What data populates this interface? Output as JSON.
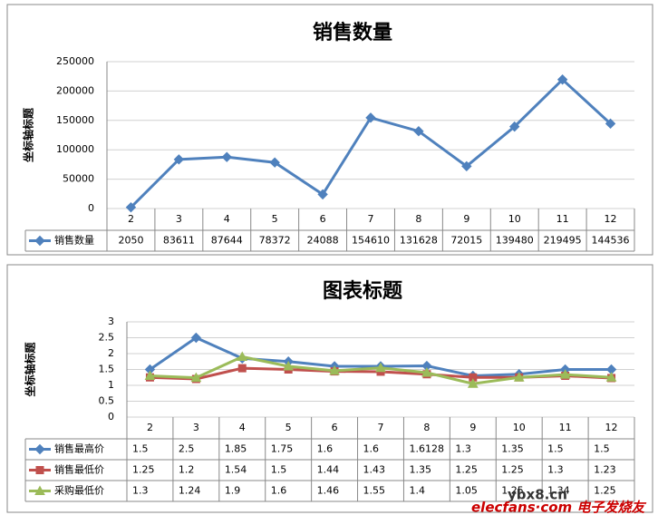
{
  "chart_data": [
    {
      "type": "line",
      "title": "销售数量",
      "y_label": "坐标轴标题",
      "categories": [
        "2",
        "3",
        "4",
        "5",
        "6",
        "7",
        "8",
        "9",
        "10",
        "11",
        "12"
      ],
      "series": [
        {
          "name": "销售数量",
          "color": "#4f81bd",
          "marker": "diamond",
          "values": [
            2050,
            83611,
            87644,
            78372,
            24088,
            154610,
            131628,
            72015,
            139480,
            219495,
            144536
          ]
        }
      ],
      "ylim": [
        0,
        250000
      ],
      "yticks": [
        0,
        50000,
        100000,
        150000,
        200000,
        250000
      ],
      "grid": true,
      "data_table": true
    },
    {
      "type": "line",
      "title": "图表标题",
      "y_label": "坐标轴标题",
      "categories": [
        "2",
        "3",
        "4",
        "5",
        "6",
        "7",
        "8",
        "9",
        "10",
        "11",
        "12"
      ],
      "series": [
        {
          "name": "销售最高价",
          "color": "#4f81bd",
          "marker": "diamond",
          "values": [
            1.5,
            2.5,
            1.85,
            1.75,
            1.6,
            1.6,
            1.6128,
            1.3,
            1.35,
            1.5,
            1.5
          ]
        },
        {
          "name": "销售最低价",
          "color": "#c0504d",
          "marker": "square",
          "values": [
            1.25,
            1.2,
            1.54,
            1.5,
            1.44,
            1.43,
            1.35,
            1.25,
            1.25,
            1.3,
            1.23
          ]
        },
        {
          "name": "采购最低价",
          "color": "#9bbb59",
          "marker": "triangle",
          "values": [
            1.3,
            1.24,
            1.9,
            1.6,
            1.46,
            1.55,
            1.4,
            1.05,
            1.25,
            1.34,
            1.25
          ]
        }
      ],
      "ylim": [
        0,
        3
      ],
      "yticks": [
        0,
        0.5,
        1,
        1.5,
        2,
        2.5,
        3
      ],
      "grid": true,
      "data_table": true
    }
  ],
  "watermark": [
    "ybx8.cn",
    "elecfans·com 电子发烧友"
  ]
}
